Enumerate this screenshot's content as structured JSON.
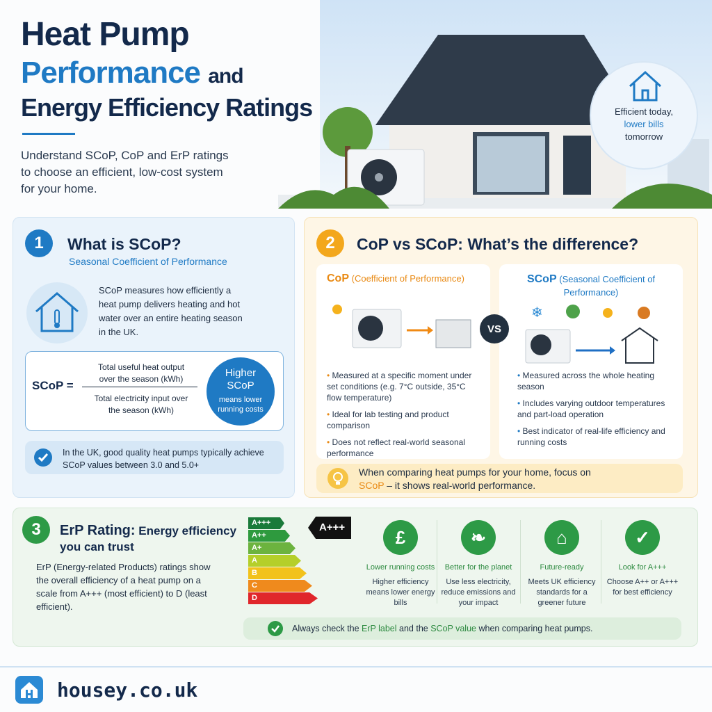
{
  "header": {
    "title_line1": "Heat Pump",
    "title_line2": "Performance",
    "title_line2_rest": "and",
    "title_line3": "Energy Efficiency Ratings",
    "subtitle": "Understand SCoP, CoP and ErP ratings to choose an efficient, low-cost system for your home."
  },
  "badge": {
    "line1": "Efficient today,",
    "line2": "lower bills",
    "line3": "tomorrow"
  },
  "section1": {
    "number": "1",
    "title": "What is SCoP?",
    "subtitle": "Seasonal Coefficient of Performance",
    "description": "SCoP measures how efficiently a heat pump delivers heating and hot water over an entire heating season in the UK.",
    "formula": {
      "label": "SCoP =",
      "numerator": "Total useful heat output over the season (kWh)",
      "denominator": "Total electricity input over the season (kWh)",
      "badge_title": "Higher SCoP",
      "badge_text": "means lower running costs"
    },
    "note": "In the UK, good quality heat pumps typically achieve SCoP values between 3.0 and 5.0+"
  },
  "section2": {
    "number": "2",
    "title": "CoP vs SCoP: What’s the difference?",
    "vs": "VS",
    "cop": {
      "heading": "CoP",
      "detail": "(Coefficient of Performance)",
      "points": [
        "Measured at a specific moment under set conditions (e.g. 7°C outside, 35°C flow temperature)",
        "Ideal for lab testing and product comparison",
        "Does not reflect real-world seasonal performance"
      ]
    },
    "scop": {
      "heading": "SCoP",
      "detail": "(Seasonal Coefficient of Performance)",
      "points": [
        "Measured across the whole heating season",
        "Includes varying outdoor temperatures and part-load operation",
        "Best indicator of real-life efficiency and running costs"
      ]
    },
    "tip": {
      "text1": "When comparing heat pumps for your home, focus on ",
      "highlight": "SCoP",
      "text2": " – it shows real-world performance."
    }
  },
  "section3": {
    "number": "3",
    "title": "ErP Rating:",
    "title_rest": "Energy efficiency you can trust",
    "description": "ErP (Energy-related Products) ratings show the overall efficiency of a heat pump on a scale from A+++ (most efficient) to D (least efficient).",
    "scale": [
      "A+++",
      "A++",
      "A+",
      "A",
      "B",
      "C",
      "D"
    ],
    "rating": "A+++",
    "benefits": [
      {
        "title": "Lower running costs",
        "text": "Higher efficiency means lower energy bills"
      },
      {
        "title": "Better for the planet",
        "text": "Use less electricity, reduce emissions and your impact"
      },
      {
        "title": "Future-ready",
        "text": "Meets UK efficiency standards for a greener future"
      },
      {
        "title": "Look for A+++",
        "text": "Choose A++ or A+++ for best efficiency"
      }
    ],
    "note": {
      "text1": "Always check the ",
      "highlight1": "ErP label",
      "text2": " and the ",
      "highlight2": "SCoP value",
      "text3": " when comparing heat pumps."
    }
  },
  "footer": {
    "site": "housey.co.uk"
  }
}
